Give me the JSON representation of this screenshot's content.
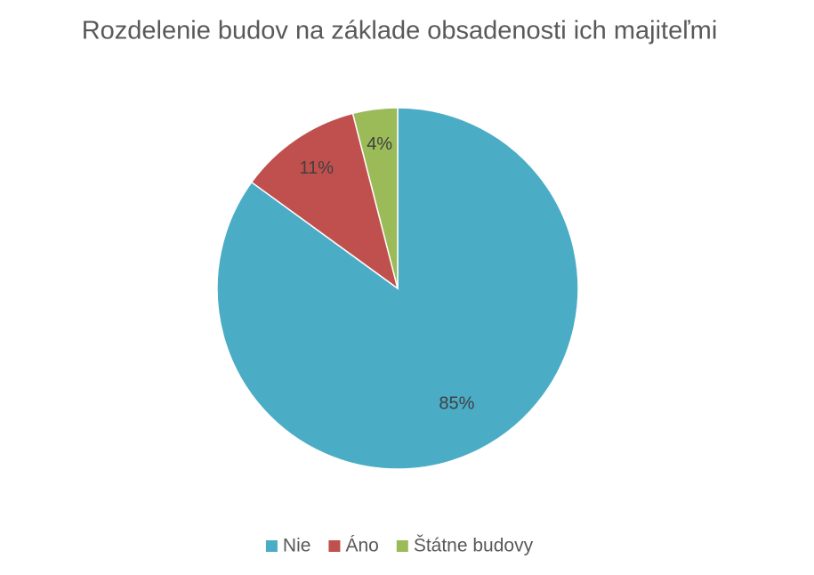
{
  "chart_data": {
    "type": "pie",
    "title": "Rozdelenie budov na základe obsadenosti ich majiteľmi",
    "categories": [
      "Nie",
      "Áno",
      "Štátne budovy"
    ],
    "values": [
      85,
      11,
      4
    ],
    "value_labels": [
      "85%",
      "11%",
      "4%"
    ],
    "colors": [
      "#4bacc6",
      "#c0504d",
      "#9bbb59"
    ],
    "legend": "bottom"
  }
}
